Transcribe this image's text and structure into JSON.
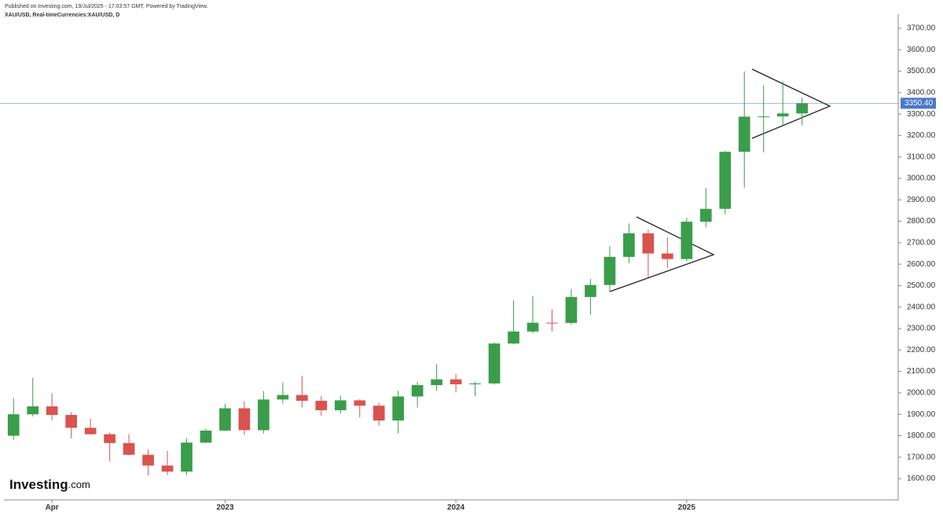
{
  "chart_data": {
    "type": "candlestick",
    "header": "Published on Investing.com, 19/Jul/2025 - 17:03:57 GMT, Powered by TradingView.",
    "title": "XAU/USD, Real-timeCurrencies:XAU/USD, D",
    "logo": {
      "brand": "Investing",
      "suffix": ".com"
    },
    "categories": [
      null,
      null,
      "Apr",
      null,
      null,
      null,
      null,
      null,
      null,
      null,
      null,
      "2023",
      null,
      null,
      null,
      null,
      null,
      null,
      null,
      null,
      null,
      null,
      null,
      "2024",
      null,
      null,
      null,
      null,
      null,
      null,
      null,
      null,
      null,
      null,
      null,
      "2025",
      null,
      null,
      null,
      null,
      null,
      null
    ],
    "open": [
      1800,
      1900,
      1937,
      1897,
      1837,
      1807,
      1766,
      1711,
      1661,
      1633,
      1768,
      1824,
      1928,
      1826,
      1969,
      1990,
      1963,
      1919,
      1965,
      1940,
      1871,
      1983,
      2036,
      2063,
      2040,
      2044,
      2230,
      2286,
      2327,
      2326,
      2447,
      2503,
      2634,
      2744,
      2650,
      2624,
      2798,
      2858,
      3124,
      3288,
      3289,
      3303
    ],
    "high": [
      1975,
      2070,
      1998,
      1910,
      1879,
      1814,
      1807,
      1735,
      1730,
      1787,
      1833,
      1949,
      1960,
      2009,
      2048,
      2079,
      1985,
      1987,
      1970,
      1953,
      2009,
      2052,
      2135,
      2088,
      2052,
      2236,
      2431,
      2450,
      2388,
      2484,
      2531,
      2685,
      2790,
      2761,
      2726,
      2817,
      2956,
      3128,
      3500,
      3435,
      3452,
      3377
    ],
    "low": [
      1780,
      1890,
      1872,
      1787,
      1805,
      1681,
      1709,
      1615,
      1617,
      1616,
      1765,
      1823,
      1805,
      1810,
      1950,
      1932,
      1893,
      1903,
      1885,
      1847,
      1810,
      1931,
      2010,
      2002,
      1984,
      2038,
      2228,
      2277,
      2286,
      2318,
      2364,
      2472,
      2604,
      2537,
      2583,
      2614,
      2772,
      2833,
      2957,
      3121,
      3247,
      3248
    ],
    "close": [
      1900,
      1937,
      1897,
      1837,
      1807,
      1766,
      1711,
      1661,
      1633,
      1768,
      1824,
      1928,
      1826,
      1969,
      1990,
      1963,
      1919,
      1965,
      1940,
      1871,
      1983,
      2036,
      2063,
      2040,
      2044,
      2230,
      2286,
      2327,
      2326,
      2447,
      2503,
      2634,
      2744,
      2650,
      2624,
      2798,
      2858,
      3124,
      3288,
      3289,
      3303,
      3350
    ],
    "up_color": "#3a9d4a",
    "down_color": "#d9534f",
    "ylim": [
      1501,
      3766
    ],
    "yticks": [
      {
        "value": 1600,
        "label": "1600.00"
      },
      {
        "value": 1700,
        "label": "1700.00"
      },
      {
        "value": 1800,
        "label": "1800.00"
      },
      {
        "value": 1900,
        "label": "1900.00"
      },
      {
        "value": 2000,
        "label": "2000.00"
      },
      {
        "value": 2100,
        "label": "2100.00"
      },
      {
        "value": 2200,
        "label": "2200.00"
      },
      {
        "value": 2300,
        "label": "2300.00"
      },
      {
        "value": 2400,
        "label": "2400.00"
      },
      {
        "value": 2500,
        "label": "2500.00"
      },
      {
        "value": 2600,
        "label": "2600.00"
      },
      {
        "value": 2700,
        "label": "2700.00"
      },
      {
        "value": 2800,
        "label": "2800.00"
      },
      {
        "value": 2900,
        "label": "2900.00"
      },
      {
        "value": 3000,
        "label": "3000.00"
      },
      {
        "value": 3100,
        "label": "3100.00"
      },
      {
        "value": 3200,
        "label": "3200.00"
      },
      {
        "value": 3300,
        "label": "3300.00"
      },
      {
        "value": 3400,
        "label": "3400.00"
      },
      {
        "value": 3500,
        "label": "3500.00"
      },
      {
        "value": 3600,
        "label": "3600.00"
      },
      {
        "value": 3700,
        "label": "3700.00"
      }
    ],
    "last_price": {
      "value": 3350.4,
      "label": "3350.40"
    },
    "last_price_color": "#4a78c8"
  }
}
